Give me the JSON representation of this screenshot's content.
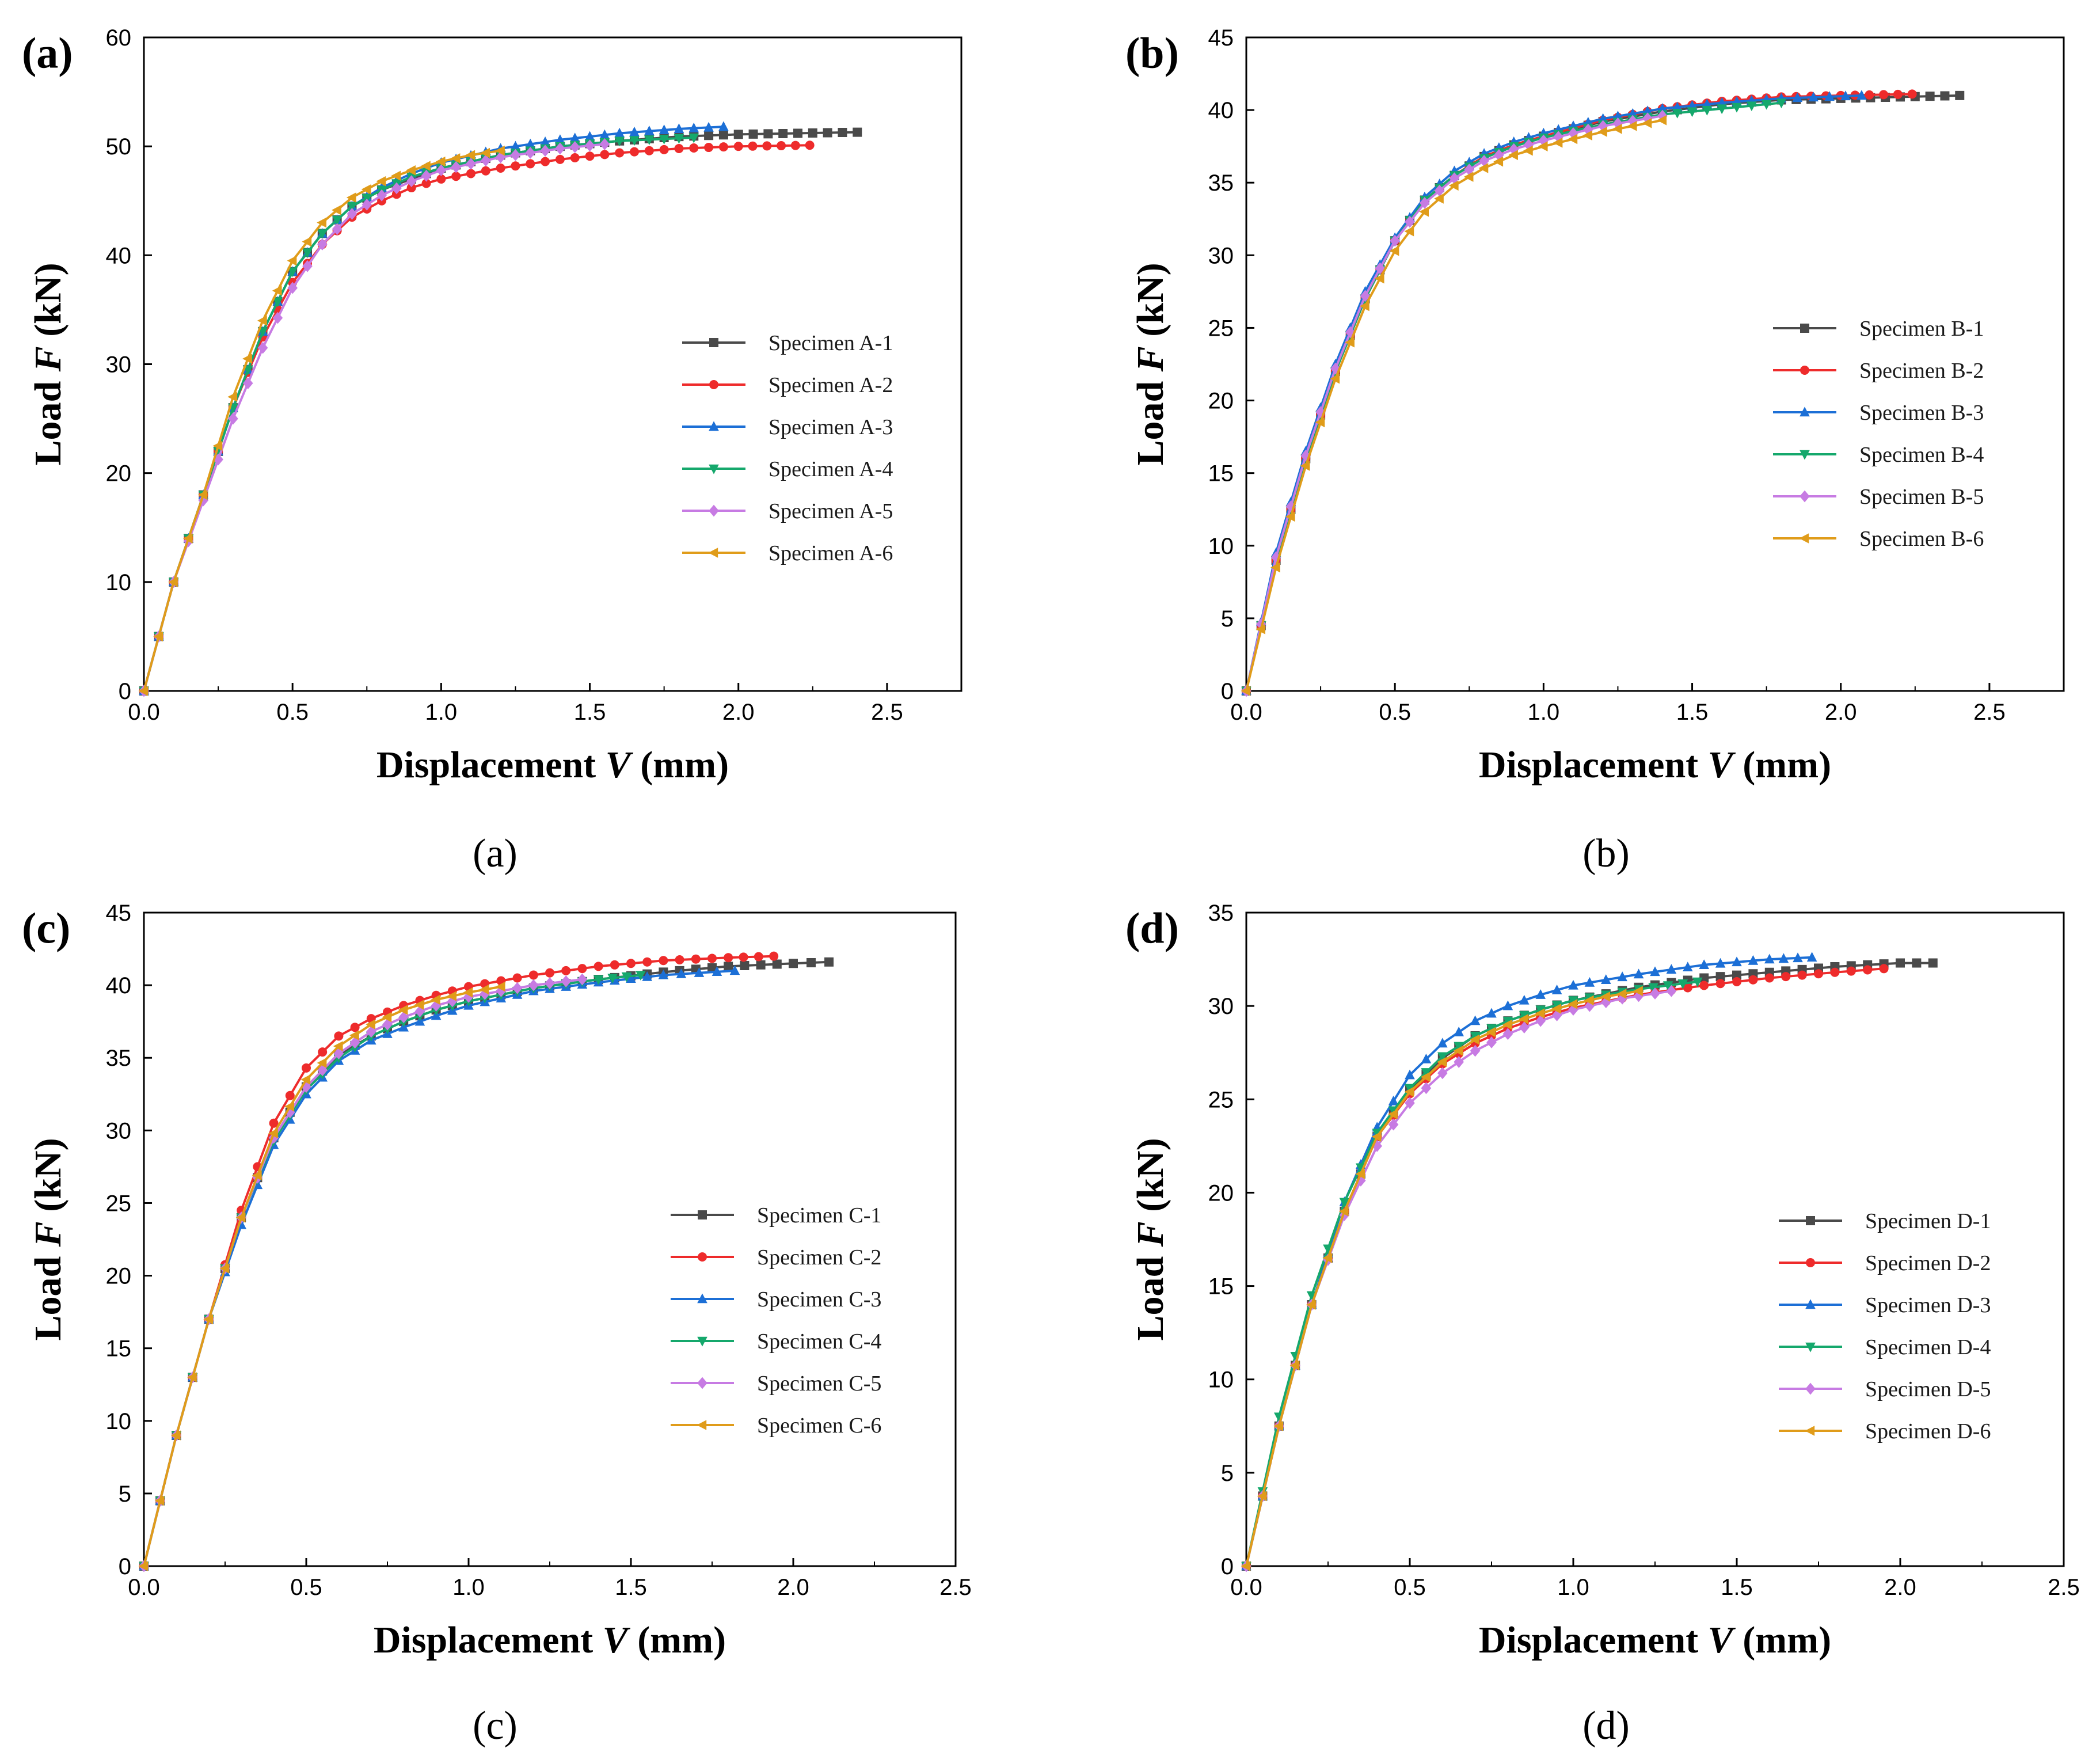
{
  "colors": {
    "s1": "#4a4a4a",
    "s2": "#ee2b2b",
    "s3": "#1c6fd6",
    "s4": "#15a86c",
    "s5": "#c77be3",
    "s6": "#e09c1a"
  },
  "series_markers": [
    "square",
    "circle",
    "triangle-up",
    "triangle-down",
    "diamond",
    "triangle-left"
  ],
  "chart_data": [
    {
      "type": "line",
      "panel_label": "(a)",
      "caption": "(a)",
      "xlabel": "Displacement V (mm)",
      "xlabel_main": "Displacement ",
      "xlabel_var": "V",
      "xlabel_unit": " (mm)",
      "ylabel": "Load F (kN)",
      "ylabel_main": "Load ",
      "ylabel_var": "F",
      "ylabel_unit": " (kN)",
      "xlim": [
        0,
        2.75
      ],
      "ylim": [
        0,
        60
      ],
      "xticks": [
        "0.0",
        "0.5",
        "1.0",
        "1.5",
        "2.0",
        "2.5"
      ],
      "yticks": [
        "0",
        "10",
        "20",
        "30",
        "40",
        "50",
        "60"
      ],
      "legend_position": "center-right",
      "series": [
        {
          "name": "Specimen A-1",
          "x": [
            0,
            0.1,
            0.2,
            0.3,
            0.4,
            0.5,
            0.6,
            0.7,
            0.8,
            0.9,
            1.0,
            1.2,
            1.4,
            1.6,
            1.8,
            2.0,
            2.2,
            2.4
          ],
          "y": [
            0,
            10,
            18,
            26,
            33,
            38.5,
            42,
            44.5,
            46,
            47,
            48,
            49.2,
            50,
            50.5,
            50.9,
            51.1,
            51.2,
            51.3
          ]
        },
        {
          "name": "Specimen A-2",
          "x": [
            0,
            0.1,
            0.2,
            0.3,
            0.4,
            0.5,
            0.6,
            0.7,
            0.8,
            0.9,
            1.0,
            1.2,
            1.4,
            1.6,
            1.8,
            2.0,
            2.24
          ],
          "y": [
            0,
            10,
            18,
            26,
            32.5,
            37.5,
            41,
            43.5,
            45,
            46.2,
            47,
            48,
            48.8,
            49.4,
            49.8,
            50,
            50.1
          ]
        },
        {
          "name": "Specimen A-3",
          "x": [
            0,
            0.1,
            0.2,
            0.3,
            0.4,
            0.5,
            0.6,
            0.7,
            0.8,
            0.9,
            1.0,
            1.2,
            1.4,
            1.6,
            1.8,
            1.95
          ],
          "y": [
            0,
            10,
            18,
            26,
            33,
            38.5,
            42,
            44.5,
            46.2,
            47.5,
            48.5,
            49.8,
            50.6,
            51.2,
            51.6,
            51.8
          ]
        },
        {
          "name": "Specimen A-4",
          "x": [
            0,
            0.1,
            0.2,
            0.3,
            0.4,
            0.5,
            0.6,
            0.7,
            0.8,
            0.9,
            1.0,
            1.2,
            1.4,
            1.6,
            1.85
          ],
          "y": [
            0,
            10,
            18,
            26,
            33,
            38.5,
            42,
            44.5,
            46,
            47.2,
            48,
            49.2,
            50,
            50.5,
            50.8
          ]
        },
        {
          "name": "Specimen A-5",
          "x": [
            0,
            0.1,
            0.2,
            0.3,
            0.4,
            0.5,
            0.6,
            0.7,
            0.8,
            0.9,
            1.0,
            1.2,
            1.4,
            1.55
          ],
          "y": [
            0,
            10,
            17.5,
            25,
            31.5,
            37,
            41,
            43.8,
            45.5,
            46.8,
            47.8,
            49,
            49.8,
            50.2
          ]
        },
        {
          "name": "Specimen A-6",
          "x": [
            0,
            0.1,
            0.2,
            0.3,
            0.4,
            0.5,
            0.6,
            0.7,
            0.8,
            0.9,
            1.0,
            1.1,
            1.2
          ],
          "y": [
            0,
            10,
            18,
            27,
            34,
            39.5,
            43,
            45.3,
            46.8,
            47.8,
            48.6,
            49.2,
            49.6
          ]
        }
      ]
    },
    {
      "type": "line",
      "panel_label": "(b)",
      "caption": "(b)",
      "xlabel": "Displacement V (mm)",
      "xlabel_main": "Displacement ",
      "xlabel_var": "V",
      "xlabel_unit": " (mm)",
      "ylabel": "Load F (kN)",
      "ylabel_main": "Load ",
      "ylabel_var": "F",
      "ylabel_unit": " (kN)",
      "xlim": [
        0,
        2.75
      ],
      "ylim": [
        0,
        45
      ],
      "xticks": [
        "0.0",
        "0.5",
        "1.0",
        "1.5",
        "2.0",
        "2.5"
      ],
      "yticks": [
        "0",
        "5",
        "10",
        "15",
        "20",
        "25",
        "30",
        "35",
        "40",
        "45"
      ],
      "legend_position": "center-right",
      "series": [
        {
          "name": "Specimen B-1",
          "x": [
            0,
            0.1,
            0.2,
            0.3,
            0.4,
            0.5,
            0.6,
            0.7,
            0.8,
            0.9,
            1.0,
            1.2,
            1.4,
            1.6,
            1.8,
            2.0,
            2.2,
            2.4
          ],
          "y": [
            0,
            9,
            16,
            22,
            27,
            31,
            33.8,
            35.5,
            36.8,
            37.6,
            38.2,
            39.2,
            39.9,
            40.4,
            40.7,
            40.8,
            40.9,
            41
          ]
        },
        {
          "name": "Specimen B-2",
          "x": [
            0,
            0.1,
            0.2,
            0.3,
            0.4,
            0.5,
            0.6,
            0.7,
            0.8,
            0.9,
            1.0,
            1.2,
            1.4,
            1.6,
            1.8,
            2.0,
            2.24
          ],
          "y": [
            0,
            9,
            16,
            22,
            27,
            31,
            33.8,
            35.5,
            36.8,
            37.6,
            38.2,
            39.3,
            40.1,
            40.6,
            40.9,
            41,
            41.1
          ]
        },
        {
          "name": "Specimen B-3",
          "x": [
            0,
            0.1,
            0.2,
            0.3,
            0.4,
            0.5,
            0.6,
            0.7,
            0.8,
            0.9,
            1.0,
            1.2,
            1.4,
            1.6,
            1.8,
            2.07
          ],
          "y": [
            0,
            9.5,
            16.5,
            22.5,
            27.5,
            31.2,
            34,
            35.8,
            37,
            37.8,
            38.4,
            39.4,
            40.1,
            40.5,
            40.8,
            41
          ]
        },
        {
          "name": "Specimen B-4",
          "x": [
            0,
            0.1,
            0.2,
            0.3,
            0.4,
            0.5,
            0.6,
            0.7,
            0.8,
            0.9,
            1.0,
            1.2,
            1.4,
            1.6,
            1.8
          ],
          "y": [
            0,
            9,
            16,
            22,
            27,
            31,
            33.8,
            35.5,
            36.7,
            37.5,
            38.1,
            39,
            39.7,
            40.1,
            40.5
          ]
        },
        {
          "name": "Specimen B-5",
          "x": [
            0,
            0.1,
            0.2,
            0.3,
            0.4,
            0.5,
            0.6,
            0.7,
            0.8,
            0.9,
            1.0,
            1.2,
            1.4
          ],
          "y": [
            0,
            9.2,
            16.2,
            22.2,
            27.2,
            31,
            33.6,
            35.3,
            36.5,
            37.3,
            37.9,
            38.9,
            39.6
          ]
        },
        {
          "name": "Specimen B-6",
          "x": [
            0,
            0.1,
            0.2,
            0.3,
            0.4,
            0.5,
            0.6,
            0.7,
            0.8,
            0.9,
            1.0,
            1.2,
            1.4
          ],
          "y": [
            0,
            8.5,
            15.5,
            21.5,
            26.5,
            30.3,
            33,
            34.8,
            36,
            36.9,
            37.5,
            38.5,
            39.3
          ]
        }
      ]
    },
    {
      "type": "line",
      "panel_label": "(c)",
      "caption": "(c)",
      "xlabel": "Displacement V (mm)",
      "xlabel_main": "Displacement ",
      "xlabel_var": "V",
      "xlabel_unit": " (mm)",
      "ylabel": "Load F (kN)",
      "ylabel_main": "Load ",
      "ylabel_var": "F",
      "ylabel_unit": " (kN)",
      "xlim": [
        0,
        2.5
      ],
      "ylim": [
        0,
        45
      ],
      "xticks": [
        "0.0",
        "0.5",
        "1.0",
        "1.5",
        "2.0",
        "2.5"
      ],
      "yticks": [
        "0",
        "5",
        "10",
        "15",
        "20",
        "25",
        "30",
        "35",
        "40",
        "45"
      ],
      "legend_position": "center-right",
      "series": [
        {
          "name": "Specimen C-1",
          "x": [
            0,
            0.1,
            0.2,
            0.3,
            0.4,
            0.5,
            0.6,
            0.7,
            0.8,
            0.9,
            1.0,
            1.2,
            1.4,
            1.6,
            1.8,
            2.0,
            2.11
          ],
          "y": [
            0,
            9,
            17,
            24,
            29.5,
            33,
            35.2,
            36.5,
            37.5,
            38.3,
            38.9,
            39.8,
            40.4,
            40.9,
            41.3,
            41.5,
            41.6
          ]
        },
        {
          "name": "Specimen C-2",
          "x": [
            0,
            0.1,
            0.2,
            0.3,
            0.4,
            0.5,
            0.6,
            0.7,
            0.8,
            0.9,
            1.0,
            1.2,
            1.4,
            1.6,
            1.8,
            1.94
          ],
          "y": [
            0,
            9,
            17,
            24.5,
            30.5,
            34.3,
            36.5,
            37.7,
            38.6,
            39.3,
            39.9,
            40.7,
            41.3,
            41.7,
            41.9,
            42
          ]
        },
        {
          "name": "Specimen C-3",
          "x": [
            0,
            0.1,
            0.2,
            0.3,
            0.4,
            0.5,
            0.6,
            0.7,
            0.8,
            0.9,
            1.0,
            1.2,
            1.4,
            1.6,
            1.82
          ],
          "y": [
            0,
            9,
            17,
            23.5,
            29,
            32.5,
            34.8,
            36.2,
            37.1,
            37.9,
            38.6,
            39.6,
            40.2,
            40.7,
            41
          ]
        },
        {
          "name": "Specimen C-4",
          "x": [
            0,
            0.1,
            0.2,
            0.3,
            0.4,
            0.5,
            0.6,
            0.7,
            0.8,
            0.9,
            1.0,
            1.2,
            1.4,
            1.53
          ],
          "y": [
            0,
            9,
            17,
            24,
            29.3,
            32.8,
            35,
            36.5,
            37.5,
            38.3,
            38.9,
            39.8,
            40.4,
            40.7
          ]
        },
        {
          "name": "Specimen C-5",
          "x": [
            0,
            0.1,
            0.2,
            0.3,
            0.4,
            0.5,
            0.6,
            0.7,
            0.8,
            0.9,
            1.0,
            1.2,
            1.35
          ],
          "y": [
            0,
            9,
            17,
            24,
            29.5,
            33,
            35.3,
            36.8,
            37.8,
            38.6,
            39.2,
            40,
            40.4
          ]
        },
        {
          "name": "Specimen C-6",
          "x": [
            0,
            0.1,
            0.2,
            0.3,
            0.4,
            0.5,
            0.6,
            0.7,
            0.8,
            0.9,
            1.0,
            1.1
          ],
          "y": [
            0,
            9,
            17,
            24,
            29.8,
            33.5,
            35.8,
            37.3,
            38.3,
            39,
            39.5,
            39.9
          ]
        }
      ]
    },
    {
      "type": "line",
      "panel_label": "(d)",
      "caption": "(d)",
      "xlabel": "Displacement V (mm)",
      "xlabel_main": "Displacement ",
      "xlabel_var": "V",
      "xlabel_unit": " (mm)",
      "ylabel": "Load F (kN)",
      "ylabel_main": "Load ",
      "ylabel_var": "F",
      "ylabel_unit": " (kN)",
      "xlim": [
        0,
        2.5
      ],
      "ylim": [
        0,
        35
      ],
      "xticks": [
        "0.0",
        "0.5",
        "1.0",
        "1.5",
        "2.0",
        "2.5"
      ],
      "yticks": [
        "0",
        "5",
        "10",
        "15",
        "20",
        "25",
        "30",
        "35"
      ],
      "legend_position": "center-right",
      "series": [
        {
          "name": "Specimen D-1",
          "x": [
            0,
            0.1,
            0.2,
            0.3,
            0.4,
            0.5,
            0.6,
            0.7,
            0.8,
            0.9,
            1.0,
            1.2,
            1.4,
            1.6,
            1.8,
            2.0,
            2.1
          ],
          "y": [
            0,
            7.5,
            14,
            19,
            23,
            25.5,
            27.2,
            28.4,
            29.2,
            29.8,
            30.3,
            31,
            31.5,
            31.8,
            32.1,
            32.3,
            32.3
          ]
        },
        {
          "name": "Specimen D-2",
          "x": [
            0,
            0.1,
            0.2,
            0.3,
            0.4,
            0.5,
            0.6,
            0.7,
            0.8,
            0.9,
            1.0,
            1.2,
            1.4,
            1.6,
            1.8,
            1.95
          ],
          "y": [
            0,
            7.5,
            14,
            19,
            23,
            25.3,
            26.9,
            28,
            28.8,
            29.4,
            29.9,
            30.6,
            31.1,
            31.5,
            31.8,
            32
          ]
        },
        {
          "name": "Specimen D-3",
          "x": [
            0,
            0.1,
            0.2,
            0.3,
            0.4,
            0.5,
            0.6,
            0.7,
            0.8,
            0.9,
            1.0,
            1.2,
            1.4,
            1.6,
            1.73
          ],
          "y": [
            0,
            7.5,
            14,
            19.5,
            23.5,
            26.3,
            28,
            29.2,
            30,
            30.6,
            31.1,
            31.7,
            32.2,
            32.5,
            32.6
          ]
        },
        {
          "name": "Specimen D-4",
          "x": [
            0,
            0.1,
            0.2,
            0.3,
            0.4,
            0.5,
            0.6,
            0.7,
            0.8,
            0.9,
            1.0,
            1.2,
            1.38
          ],
          "y": [
            0,
            8,
            14.5,
            19.5,
            23.2,
            25.6,
            27.3,
            28.4,
            29.2,
            29.8,
            30.3,
            30.9,
            31.3
          ]
        },
        {
          "name": "Specimen D-5",
          "x": [
            0,
            0.1,
            0.2,
            0.3,
            0.4,
            0.5,
            0.6,
            0.7,
            0.8,
            0.9,
            1.0,
            1.15,
            1.3
          ],
          "y": [
            0,
            7.5,
            14,
            18.8,
            22.5,
            24.8,
            26.4,
            27.6,
            28.5,
            29.2,
            29.8,
            30.4,
            30.8
          ]
        },
        {
          "name": "Specimen D-6",
          "x": [
            0,
            0.1,
            0.2,
            0.3,
            0.4,
            0.5,
            0.6,
            0.7,
            0.8,
            0.9,
            1.0,
            1.1,
            1.2
          ],
          "y": [
            0,
            7.5,
            14,
            19,
            23,
            25.4,
            27,
            28.2,
            29,
            29.6,
            30.1,
            30.5,
            30.8
          ]
        }
      ]
    }
  ]
}
